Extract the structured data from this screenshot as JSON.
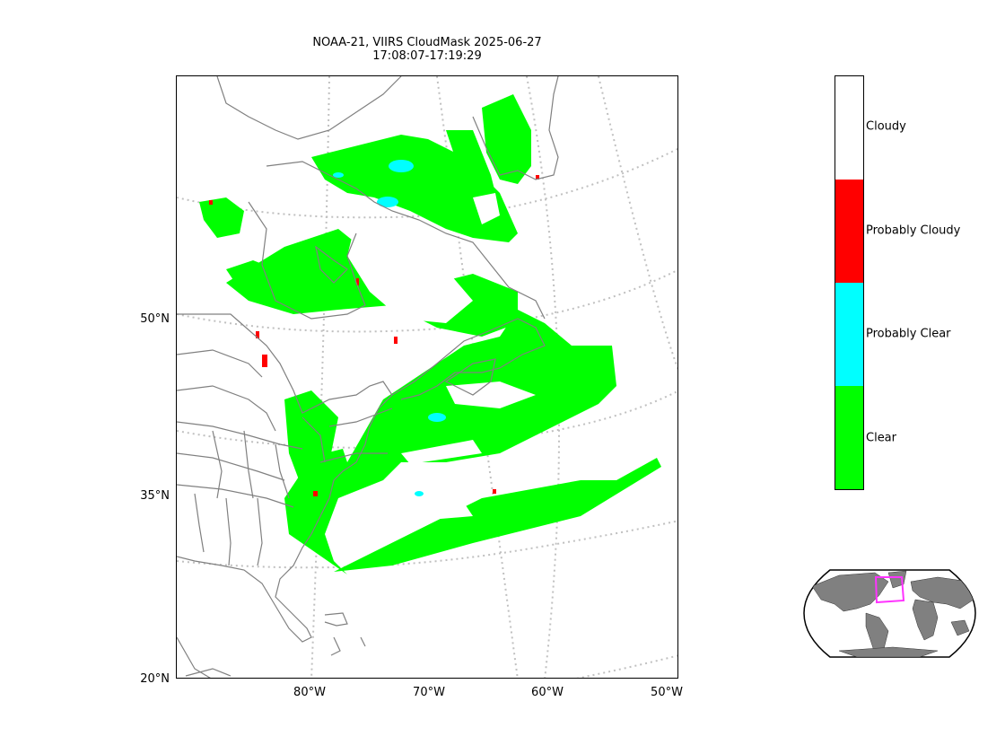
{
  "title": {
    "line1": "NOAA-21, VIIRS CloudMask 2025-06-27",
    "line2": "17:08:07-17:19:29"
  },
  "axes": {
    "lat_labels": [
      "50°N",
      "35°N",
      "20°N"
    ],
    "lon_labels": [
      "80°W",
      "70°W",
      "60°W",
      "50°W"
    ]
  },
  "legend": {
    "classes": [
      {
        "label": "Cloudy",
        "color": "#ffffff"
      },
      {
        "label": "Probably Cloudy",
        "color": "#ff0000"
      },
      {
        "label": "Probably Clear",
        "color": "#00ffff"
      },
      {
        "label": "Clear",
        "color": "#00ff00"
      }
    ]
  },
  "colors": {
    "coastline": "#808080",
    "graticule": "#c0c0c0",
    "inset_land": "#808080",
    "inset_box": "#ff33ff"
  }
}
